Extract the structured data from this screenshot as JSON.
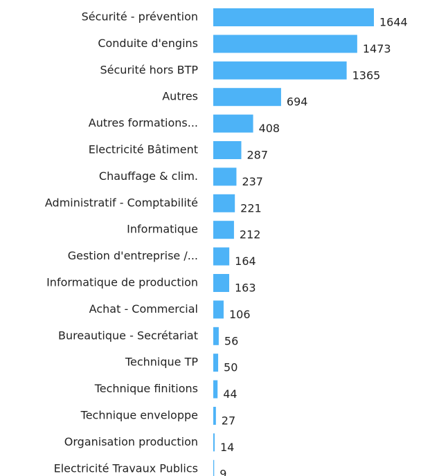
{
  "chart_data": {
    "type": "bar",
    "orientation": "horizontal",
    "categories": [
      "Sécurité - prévention",
      "Conduite d'engins",
      "Sécurité hors BTP",
      "Autres",
      "Autres formations...",
      "Electricité Bâtiment",
      "Chauffage & clim.",
      "Administratif - Comptabilité",
      "Informatique",
      "Gestion d'entreprise /...",
      "Informatique de production",
      "Achat - Commercial",
      "Bureautique - Secrétariat",
      "Technique TP",
      "Technique finitions",
      "Technique enveloppe",
      "Organisation production",
      "Electricité Travaux Publics"
    ],
    "values": [
      1644,
      1473,
      1365,
      694,
      408,
      287,
      237,
      221,
      212,
      164,
      163,
      106,
      56,
      50,
      44,
      27,
      14,
      9
    ],
    "color": "#4db3f7"
  }
}
